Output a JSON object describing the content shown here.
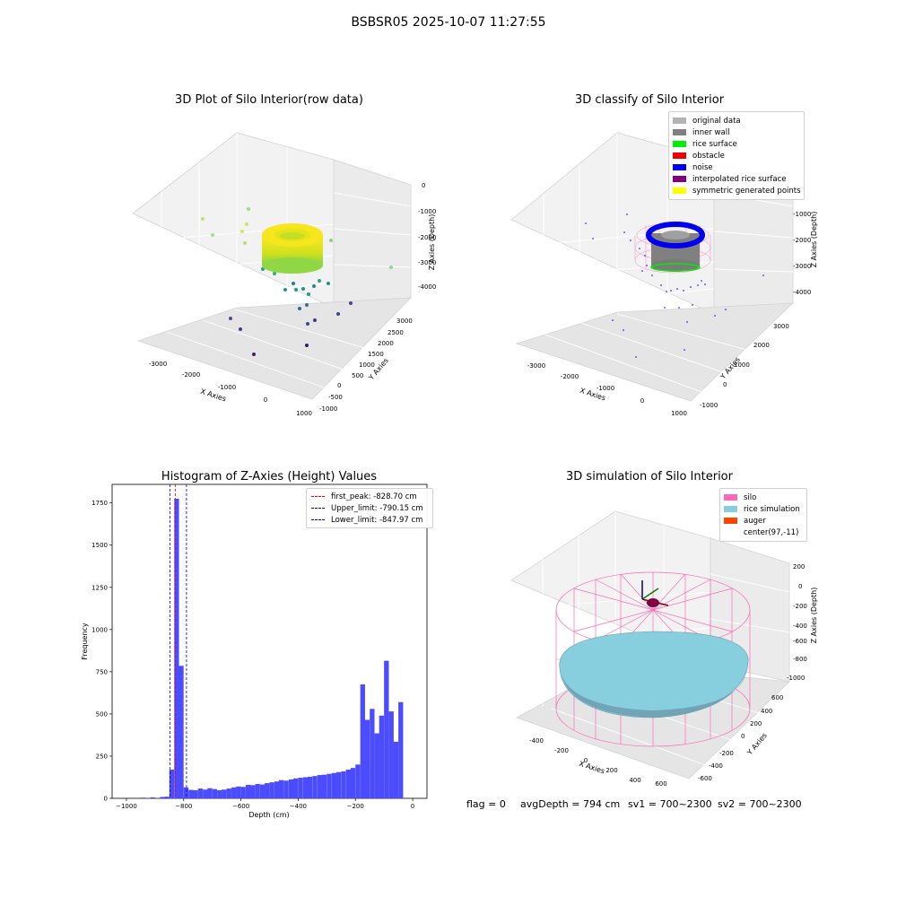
{
  "suptitle": "BSBSR05 2025-10-07 11:27:55",
  "footer": {
    "flag": "flag = 0",
    "avg": "avgDepth = 794 cm",
    "sv1": "sv1 = 700~2300",
    "sv2": "sv2 = 700~2300"
  },
  "chart_data": [
    {
      "type": "scatter",
      "projection": "3d",
      "title": "3D Plot of Silo Interior(row data)",
      "xlabel": "X Axies",
      "ylabel": "Y Axies",
      "zlabel": "Z Axies (Depth)",
      "x_ticks": [
        "-3000",
        "-2000",
        "-1000",
        "0",
        "1000"
      ],
      "y_ticks": [
        "-1000",
        "-500",
        "0",
        "500",
        "1000",
        "1500",
        "2000",
        "2500",
        "3000"
      ],
      "z_ticks": [
        "0",
        "-1000",
        "-2000",
        "-3000",
        "-4000"
      ],
      "colormap": "viridis"
    },
    {
      "type": "scatter",
      "projection": "3d",
      "title": "3D classify of Silo Interior",
      "xlabel": "X Axies",
      "ylabel": "Y Axies",
      "zlabel": "Z Axies (Depth)",
      "x_ticks": [
        "-3000",
        "-2000",
        "-1000",
        "0",
        "1000"
      ],
      "y_ticks": [
        "-1000",
        "0",
        "1000",
        "2000",
        "3000"
      ],
      "z_ticks": [
        "0",
        "-1000",
        "-2000",
        "-3000",
        "-4000"
      ],
      "legend": [
        {
          "label": "original data",
          "color": "#b3b3b3"
        },
        {
          "label": "inner wall",
          "color": "#808080"
        },
        {
          "label": "rice surface",
          "color": "#00ee00"
        },
        {
          "label": "obstacle",
          "color": "#ee0000"
        },
        {
          "label": "noise",
          "color": "#0000ee"
        },
        {
          "label": "interpolated rice surface",
          "color": "#800080"
        },
        {
          "label": "symmetric generated points",
          "color": "#ffff00"
        }
      ]
    },
    {
      "type": "bar",
      "title": "Histogram of Z-Axies (Height) Values",
      "xlabel": "Depth (cm)",
      "ylabel": "Frequency",
      "xlim": [
        -1050,
        50
      ],
      "ylim": [
        0,
        1860
      ],
      "x_ticks": [
        -1000,
        -800,
        -600,
        -400,
        -200,
        0
      ],
      "y_ticks": [
        0,
        250,
        500,
        750,
        1000,
        1250,
        1500,
        1750
      ],
      "bar_color": "#4c4cff",
      "bin_width": 16.67,
      "bins": [
        {
          "x": -950,
          "v": 4
        },
        {
          "x": -933,
          "v": 2
        },
        {
          "x": -917,
          "v": 6
        },
        {
          "x": -900,
          "v": 3
        },
        {
          "x": -883,
          "v": 8
        },
        {
          "x": -867,
          "v": 10
        },
        {
          "x": -850,
          "v": 170
        },
        {
          "x": -833,
          "v": 1775
        },
        {
          "x": -817,
          "v": 785
        },
        {
          "x": -800,
          "v": 65
        },
        {
          "x": -783,
          "v": 50
        },
        {
          "x": -767,
          "v": 48
        },
        {
          "x": -750,
          "v": 58
        },
        {
          "x": -733,
          "v": 52
        },
        {
          "x": -717,
          "v": 60
        },
        {
          "x": -700,
          "v": 55
        },
        {
          "x": -683,
          "v": 48
        },
        {
          "x": -667,
          "v": 52
        },
        {
          "x": -650,
          "v": 58
        },
        {
          "x": -633,
          "v": 65
        },
        {
          "x": -617,
          "v": 70
        },
        {
          "x": -600,
          "v": 68
        },
        {
          "x": -583,
          "v": 80
        },
        {
          "x": -567,
          "v": 78
        },
        {
          "x": -550,
          "v": 85
        },
        {
          "x": -533,
          "v": 82
        },
        {
          "x": -517,
          "v": 90
        },
        {
          "x": -500,
          "v": 95
        },
        {
          "x": -483,
          "v": 100
        },
        {
          "x": -467,
          "v": 108
        },
        {
          "x": -450,
          "v": 105
        },
        {
          "x": -433,
          "v": 112
        },
        {
          "x": -417,
          "v": 118
        },
        {
          "x": -400,
          "v": 122
        },
        {
          "x": -383,
          "v": 125
        },
        {
          "x": -367,
          "v": 128
        },
        {
          "x": -350,
          "v": 132
        },
        {
          "x": -333,
          "v": 138
        },
        {
          "x": -317,
          "v": 140
        },
        {
          "x": -300,
          "v": 145
        },
        {
          "x": -283,
          "v": 150
        },
        {
          "x": -267,
          "v": 155
        },
        {
          "x": -250,
          "v": 160
        },
        {
          "x": -233,
          "v": 170
        },
        {
          "x": -217,
          "v": 180
        },
        {
          "x": -200,
          "v": 200
        },
        {
          "x": -183,
          "v": 675
        },
        {
          "x": -167,
          "v": 465
        },
        {
          "x": -150,
          "v": 530
        },
        {
          "x": -133,
          "v": 385
        },
        {
          "x": -117,
          "v": 490
        },
        {
          "x": -100,
          "v": 815
        },
        {
          "x": -83,
          "v": 515
        },
        {
          "x": -67,
          "v": 335
        },
        {
          "x": -50,
          "v": 570
        }
      ],
      "vlines": [
        {
          "label": "first_peak: -828.70 cm",
          "x": -828.7,
          "color": "#ff0000"
        },
        {
          "label": "Upper_limit: -790.15 cm",
          "x": -790.15,
          "color": "#0000cc"
        },
        {
          "label": "Lower_limit: -847.97 cm",
          "x": -847.97,
          "color": "#0000cc"
        }
      ]
    },
    {
      "type": "surface",
      "projection": "3d",
      "title": "3D simulation of Silo Interior",
      "xlabel": "X Axies",
      "ylabel": "Y Axies",
      "zlabel": "Z Axies (Depth)",
      "x_ticks": [
        "-400",
        "-200",
        "0",
        "200",
        "400",
        "600"
      ],
      "y_ticks": [
        "-600",
        "-400",
        "-200",
        "0",
        "200",
        "400",
        "600"
      ],
      "z_ticks": [
        "200",
        "0",
        "-200",
        "-400",
        "-600",
        "-800",
        "-1000"
      ],
      "legend": [
        {
          "label": "silo",
          "color": "#ff69b4"
        },
        {
          "label": "rice simulation",
          "color": "#87cedf"
        },
        {
          "label": "auger",
          "color": "#ff4500"
        },
        {
          "label": "center(97,-11)",
          "color": "#ffffff"
        }
      ]
    }
  ]
}
